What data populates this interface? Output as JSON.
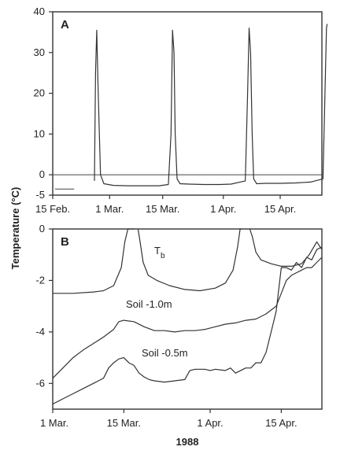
{
  "y_axis_label": "Temperature (°C)",
  "chart_data": [
    {
      "panel": "A",
      "type": "line",
      "xlabel": "",
      "ylabel": "Temperature (°C)",
      "xlim": [
        0,
        71
      ],
      "ylim": [
        -5,
        40
      ],
      "x_unit": "days from 15 Feb. 1988",
      "x_ticks": [
        0,
        15,
        29,
        45,
        60
      ],
      "x_tick_labels": [
        "15 Feb.",
        "1 Mar.",
        "15 Mar.",
        "1 Apr.",
        "15 Apr."
      ],
      "y_ticks": [
        -5,
        0,
        10,
        20,
        30,
        40
      ],
      "y_tick_labels": [
        "-5",
        "0",
        "10",
        "20",
        "30",
        "40"
      ],
      "reference_line_y": 0,
      "annotation_segment": {
        "x": [
          0,
          4
        ],
        "y": -3.5
      },
      "series": [
        {
          "x": [
            11.0,
            11.3,
            11.6,
            12.0,
            12.6,
            13.5,
            16,
            20,
            24,
            28,
            30.5,
            31.2,
            31.6,
            32.0,
            32.3,
            32.8,
            33.6,
            36,
            40,
            44,
            47,
            50.8,
            51.4,
            51.8,
            52.2,
            52.6,
            53.0,
            53.8,
            56,
            60,
            64,
            68,
            71.3,
            71.8,
            72.2,
            72.6
          ],
          "y": [
            -1.5,
            25,
            35.5,
            20,
            0,
            -2.2,
            -2.6,
            -2.7,
            -2.7,
            -2.7,
            -2.4,
            10,
            35.5,
            30,
            10,
            -1,
            -2.2,
            -2.3,
            -2.4,
            -2.4,
            -2.3,
            -1.5,
            20,
            36,
            30,
            10,
            -1,
            -2.2,
            -2.1,
            -2.1,
            -2.0,
            -1.8,
            -1.0,
            20,
            36,
            37
          ]
        }
      ]
    },
    {
      "panel": "B",
      "type": "line",
      "xlabel": "1988",
      "ylabel": "Temperature (°C)",
      "xlim": [
        0,
        53
      ],
      "ylim": [
        -7,
        0
      ],
      "x_unit": "days from 1 Mar. 1988",
      "x_ticks": [
        0,
        14,
        31,
        45
      ],
      "x_tick_labels": [
        "1 Mar.",
        "15 Mar.",
        "1 Apr.",
        "15 Apr."
      ],
      "y_ticks": [
        -6,
        -4,
        -2,
        0
      ],
      "y_tick_labels": [
        "-6",
        "-4",
        "-2",
        "0"
      ],
      "series": [
        {
          "name": "Tb",
          "label_main": "T",
          "label_sub": "b",
          "x": [
            0,
            4,
            8,
            10,
            12,
            13.5,
            14.2,
            14.8,
            15.3,
            15.6,
            15.9,
            16.1
          ],
          "y": [
            -2.5,
            -2.5,
            -2.45,
            -2.4,
            -2.2,
            -1.5,
            -0.5,
            0.5,
            0.5,
            0.5,
            0.5,
            0.5
          ],
          "x2": [
            16.8,
            17.2,
            17.8,
            18.8,
            20.5,
            23,
            26,
            29,
            32,
            34,
            35.5,
            36.4,
            36.9,
            37.2
          ],
          "y2": [
            0.5,
            -0.5,
            -1.3,
            -1.8,
            -2.0,
            -2.2,
            -2.35,
            -2.4,
            -2.3,
            -2.1,
            -1.6,
            -0.7,
            0.2,
            0.5
          ],
          "x3": [
            38.8,
            39.3,
            40,
            41,
            43,
            45,
            47,
            49,
            50.5,
            52,
            53
          ],
          "y3": [
            0.5,
            -0.3,
            -0.9,
            -1.2,
            -1.35,
            -1.45,
            -1.45,
            -1.35,
            -1.0,
            -0.5,
            -0.8
          ]
        },
        {
          "name": "Soil -1.0m",
          "label": "Soil -1.0m",
          "x": [
            0,
            2,
            4,
            6,
            8,
            10,
            12,
            13,
            14,
            16,
            18,
            20,
            22,
            24,
            26,
            28,
            30,
            32,
            34,
            36,
            38,
            40,
            42,
            44,
            45,
            46,
            47,
            48,
            49,
            50,
            51,
            52,
            53
          ],
          "y": [
            -5.8,
            -5.4,
            -5.0,
            -4.7,
            -4.45,
            -4.2,
            -3.9,
            -3.6,
            -3.55,
            -3.6,
            -3.8,
            -3.95,
            -3.95,
            -4.0,
            -3.95,
            -3.95,
            -3.9,
            -3.8,
            -3.7,
            -3.65,
            -3.55,
            -3.5,
            -3.3,
            -3.0,
            -2.5,
            -2.0,
            -1.8,
            -1.7,
            -1.6,
            -1.5,
            -1.5,
            -1.3,
            -1.1
          ]
        },
        {
          "name": "Soil -0.5m",
          "label": "Soil -0.5m",
          "x": [
            0,
            2,
            4,
            6,
            8,
            10,
            11,
            12,
            13,
            14,
            15,
            16,
            17,
            18,
            19,
            20,
            22,
            24,
            26,
            27,
            28,
            30,
            31,
            32,
            34,
            35,
            36,
            38,
            39,
            40,
            41,
            42,
            43,
            44,
            45,
            46,
            47,
            48,
            49,
            50,
            51,
            52,
            53
          ],
          "y": [
            -6.8,
            -6.6,
            -6.4,
            -6.2,
            -6.0,
            -5.8,
            -5.4,
            -5.2,
            -5.05,
            -5.0,
            -5.2,
            -5.3,
            -5.6,
            -5.75,
            -5.85,
            -5.9,
            -5.95,
            -5.9,
            -5.85,
            -5.5,
            -5.45,
            -5.45,
            -5.5,
            -5.45,
            -5.5,
            -5.4,
            -5.6,
            -5.4,
            -5.4,
            -5.2,
            -5.2,
            -4.8,
            -4.0,
            -3.2,
            -1.5,
            -1.5,
            -1.6,
            -1.3,
            -1.5,
            -1.1,
            -1.2,
            -0.8,
            -0.7
          ]
        }
      ]
    }
  ]
}
